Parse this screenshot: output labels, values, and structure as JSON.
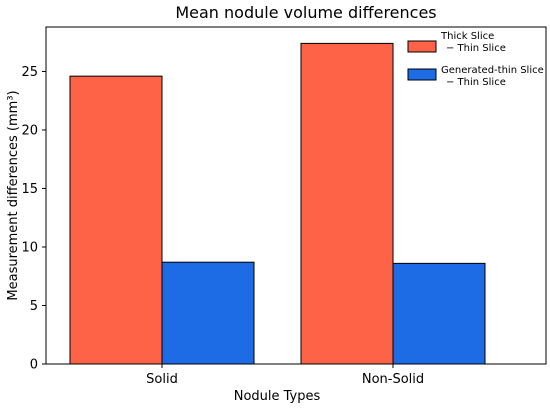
{
  "chart_data": {
    "type": "bar",
    "title": "Mean nodule volume differences",
    "xlabel": "Nodule Types",
    "ylabel": "Measurement differences (mm³)",
    "categories": [
      "Solid",
      "Non-Solid"
    ],
    "series": [
      {
        "name": "Thick Slice − Thin Slice",
        "name_lines": [
          "Thick Slice",
          "− Thin Slice"
        ],
        "color": "#ff6347",
        "values": [
          24.6,
          27.4
        ]
      },
      {
        "name": "Generated-thin Slice − Thin Slice",
        "name_lines": [
          "Generated-thin Slice",
          "− Thin Slice"
        ],
        "color": "#1e6be6",
        "values": [
          8.7,
          8.6
        ]
      }
    ],
    "ylim": [
      0,
      28.8
    ],
    "yticks": [
      0,
      5,
      10,
      15,
      20,
      25
    ],
    "grid": false,
    "legend_position": "top-right"
  }
}
